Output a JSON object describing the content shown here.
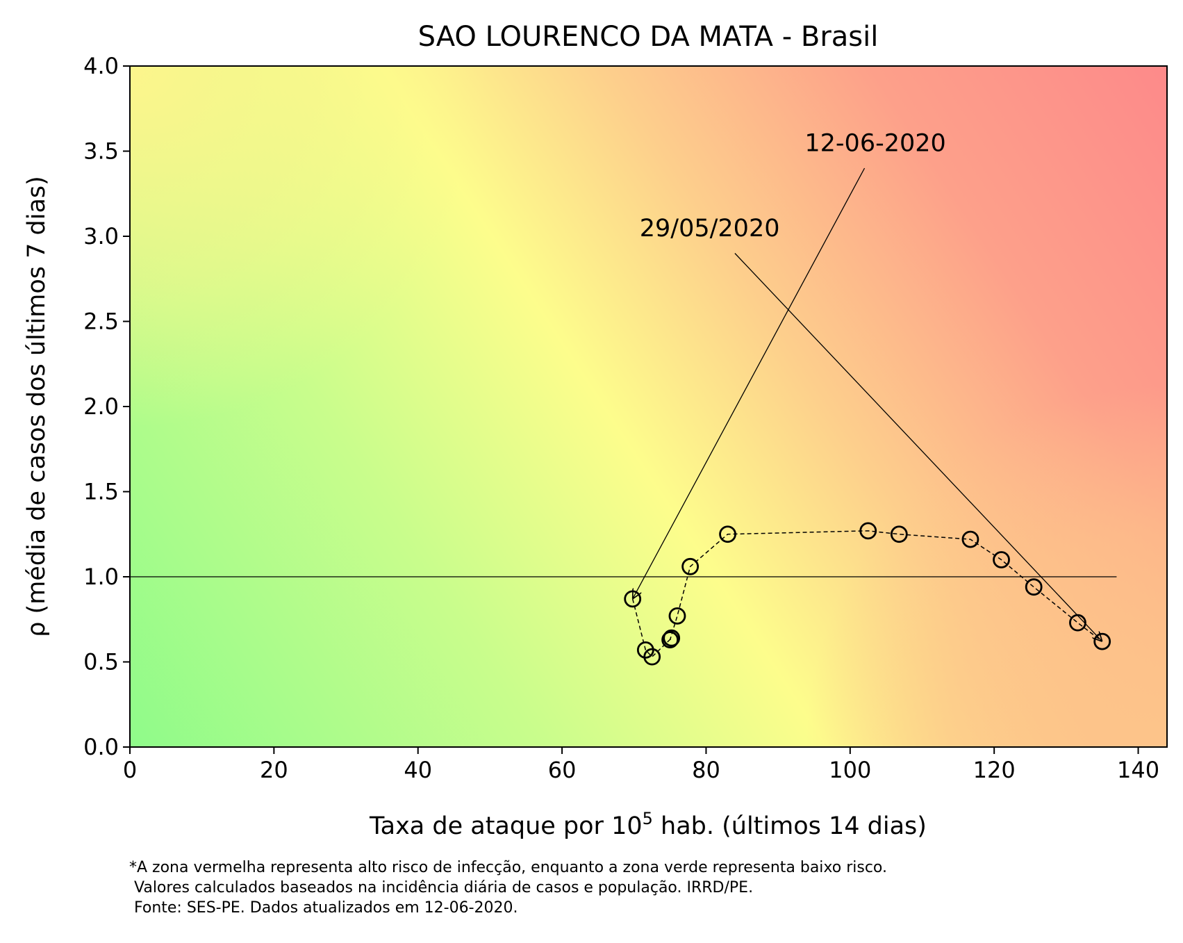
{
  "chart_data": {
    "type": "scatter",
    "title": "SAO LOURENCO DA MATA - Brasil",
    "xlabel": "Taxa de ataque por 10",
    "xlabel_sup": "5",
    "xlabel_suffix": " hab. (últimos 14 dias)",
    "ylabel": "ρ (média de casos dos últimos 7 dias)",
    "xlim": [
      0,
      144
    ],
    "ylim": [
      0,
      4.0
    ],
    "x_ticks": [
      0,
      20,
      40,
      60,
      80,
      100,
      120,
      140
    ],
    "y_ticks": [
      0.0,
      0.5,
      1.0,
      1.5,
      2.0,
      2.5,
      3.0,
      3.5,
      4.0
    ],
    "y_tick_labels": [
      "0.0",
      "0.5",
      "1.0",
      "1.5",
      "2.0",
      "2.5",
      "3.0",
      "3.5",
      "4.0"
    ],
    "reference_line": {
      "y": 1.0,
      "x_range": [
        0,
        137
      ]
    },
    "background": "gradient green (low risk) to yellow to red (high risk)",
    "series": [
      {
        "points": [
          {
            "x": 69.8,
            "y": 0.87
          },
          {
            "x": 71.6,
            "y": 0.57
          },
          {
            "x": 72.5,
            "y": 0.53
          },
          {
            "x": 75.2,
            "y": 0.64
          },
          {
            "x": 75.0,
            "y": 0.63
          },
          {
            "x": 76.0,
            "y": 0.77
          },
          {
            "x": 77.8,
            "y": 1.06
          },
          {
            "x": 83.0,
            "y": 1.25
          },
          {
            "x": 102.5,
            "y": 1.27
          },
          {
            "x": 106.8,
            "y": 1.25
          },
          {
            "x": 116.7,
            "y": 1.22
          },
          {
            "x": 121.0,
            "y": 1.1
          },
          {
            "x": 125.5,
            "y": 0.94
          },
          {
            "x": 131.6,
            "y": 0.73
          },
          {
            "x": 135.0,
            "y": 0.62
          }
        ]
      }
    ],
    "annotations": [
      {
        "text": "12-06-2020",
        "text_at": {
          "x": 103.5,
          "y": 3.5
        },
        "tail": {
          "x": 102.0,
          "y": 3.4
        },
        "arrow_to": {
          "x": 69.8,
          "y": 0.87
        }
      },
      {
        "text": "29/05/2020",
        "text_at": {
          "x": 80.5,
          "y": 3.0
        },
        "tail": {
          "x": 84.0,
          "y": 2.9
        },
        "arrow_to": {
          "x": 135.0,
          "y": 0.62
        }
      }
    ]
  },
  "footnote": {
    "line1": "*A zona vermelha representa alto risco de infecção, enquanto a zona verde representa baixo risco.",
    "line2": " Valores calculados baseados na incidência diária de casos e população. IRRD/PE.",
    "line3": " Fonte: SES-PE. Dados atualizados em 12-06-2020."
  }
}
